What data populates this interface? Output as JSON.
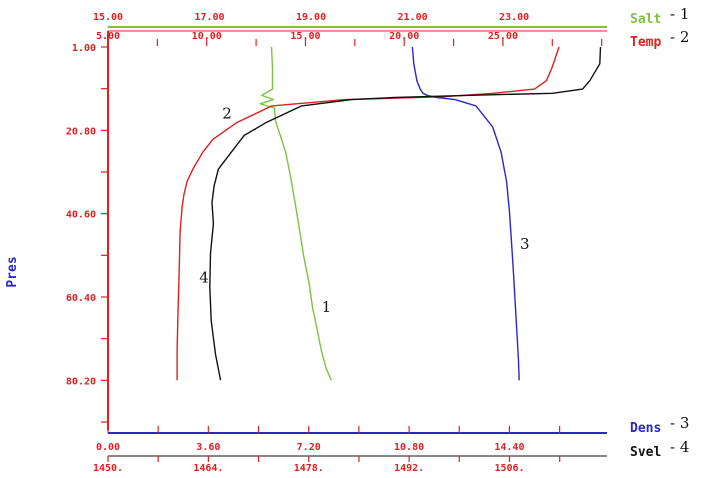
{
  "chart_data": {
    "type": "line",
    "y_axis": {
      "label": "Pres",
      "ticks": [
        "1.00",
        "20.80",
        "40.60",
        "60.40",
        "80.20"
      ],
      "range": [
        1.0,
        92.0
      ],
      "inverted": true
    },
    "x_axes": [
      {
        "id": "salt",
        "position": "top-outer",
        "ticks": [
          "15.00",
          "17.00",
          "19.00",
          "21.00",
          "23.00"
        ],
        "range": [
          15.0,
          24.83
        ]
      },
      {
        "id": "temp",
        "position": "top-inner",
        "ticks": [
          "5.00",
          "10.00",
          "15.00",
          "20.00",
          "25.00"
        ],
        "range": [
          5.0,
          30.27
        ]
      },
      {
        "id": "dens",
        "position": "bottom-inner",
        "ticks": [
          "0.00",
          "3.60",
          "7.20",
          "10.80",
          "14.40"
        ],
        "range": [
          0.0,
          17.9
        ]
      },
      {
        "id": "svel",
        "position": "bottom-outer",
        "ticks": [
          "1450.",
          "1464.",
          "1478.",
          "1492.",
          "1506."
        ],
        "range": [
          1450.0,
          1519.6
        ]
      }
    ],
    "legend": [
      {
        "name": "Salt",
        "number": "1",
        "color": "#7cc242"
      },
      {
        "name": "Temp",
        "number": "2",
        "color": "#e02020"
      },
      {
        "name": "Dens",
        "number": "3",
        "color": "#2828c8"
      },
      {
        "name": "Svel",
        "number": "4",
        "color": "#111111"
      }
    ],
    "series": [
      {
        "name": "Salt",
        "number": "1",
        "axis": "salt",
        "color": "#7cc242",
        "x": [
          18.22,
          18.24,
          18.24,
          18.03,
          18.26,
          18.0,
          18.28,
          18.3,
          18.5,
          18.6,
          18.7,
          18.78,
          18.86,
          18.96,
          19.03,
          19.12,
          19.2,
          19.3,
          19.4
        ],
        "y": [
          1.0,
          6.0,
          11.0,
          12.5,
          13.5,
          14.5,
          15.5,
          18.5,
          26.0,
          32.0,
          39.0,
          45.0,
          51.0,
          57.0,
          63.0,
          68.0,
          73.0,
          77.5,
          80.2
        ]
      },
      {
        "name": "Temp",
        "number": "2",
        "axis": "temp",
        "color": "#e02020",
        "x": [
          27.84,
          27.48,
          27.2,
          26.6,
          24.5,
          22.0,
          17.0,
          13.3,
          11.5,
          10.3,
          9.8,
          9.3,
          9.0,
          8.85,
          8.75,
          8.65,
          8.6,
          8.55,
          8.5,
          8.5
        ],
        "y": [
          1.0,
          6.0,
          9.0,
          11.0,
          12.0,
          12.8,
          13.5,
          15.0,
          19.0,
          23.0,
          26.0,
          30.0,
          33.0,
          36.0,
          39.0,
          45.0,
          55.0,
          63.0,
          73.0,
          80.2
        ]
      },
      {
        "name": "Dens",
        "number": "3",
        "axis": "dens",
        "color": "#2828c8",
        "x": [
          10.92,
          10.97,
          11.08,
          11.2,
          11.3,
          11.45,
          11.8,
          12.45,
          13.2,
          13.8,
          14.1,
          14.3,
          14.4,
          14.47,
          14.54,
          14.6,
          14.66,
          14.72,
          14.75
        ],
        "y": [
          1.0,
          5.0,
          9.0,
          11.0,
          12.0,
          12.5,
          13.0,
          13.5,
          15.0,
          20.0,
          26.0,
          33.0,
          40.0,
          47.0,
          54.0,
          61.0,
          68.0,
          75.0,
          80.2
        ]
      },
      {
        "name": "Svel",
        "number": "4",
        "axis": "svel",
        "color": "#111111",
        "x": [
          1518.7,
          1518.6,
          1517.2,
          1516.2,
          1512.0,
          1500.0,
          1490.0,
          1484.0,
          1477.0,
          1472.0,
          1469.0,
          1467.2,
          1465.4,
          1464.8,
          1464.5,
          1464.7,
          1464.3,
          1464.2,
          1464.4,
          1465.0,
          1465.7
        ],
        "y": [
          1.0,
          5.0,
          9.0,
          11.0,
          12.0,
          12.5,
          13.0,
          13.5,
          15.0,
          19.0,
          22.0,
          26.0,
          30.0,
          34.0,
          38.0,
          43.0,
          50.0,
          58.0,
          66.0,
          74.0,
          80.2
        ]
      }
    ]
  }
}
